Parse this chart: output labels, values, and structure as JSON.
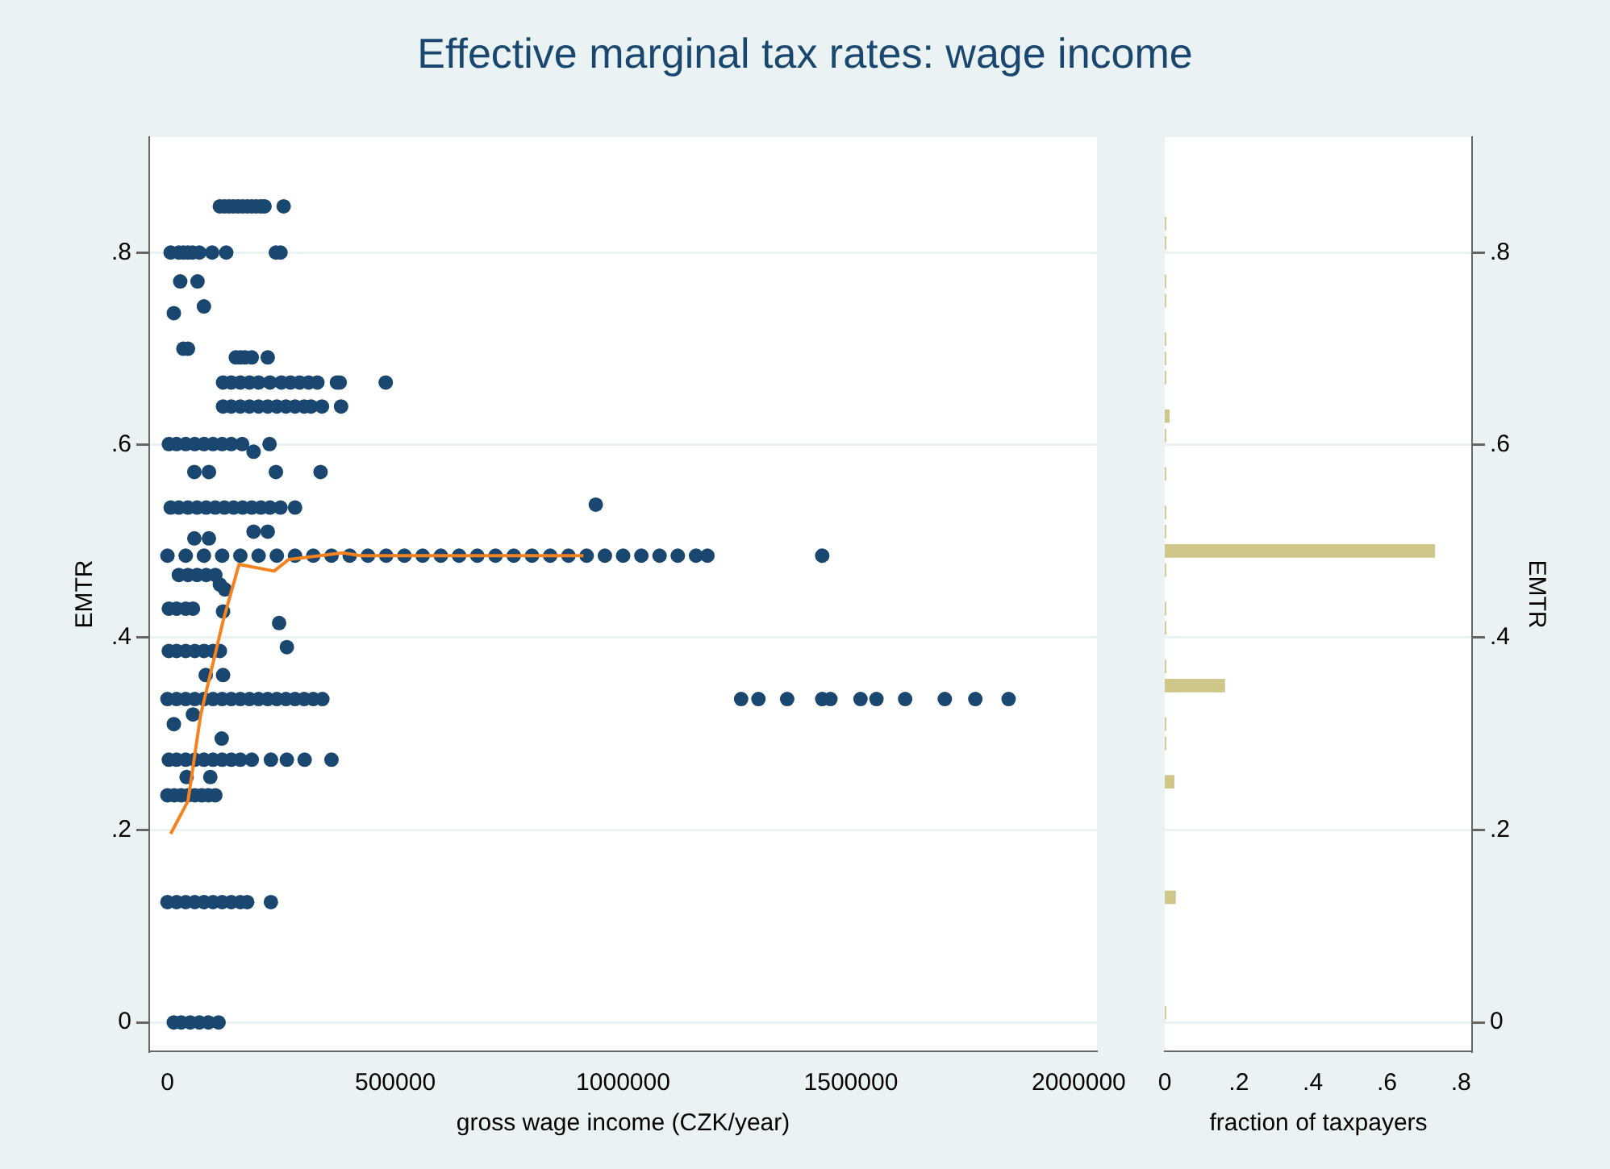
{
  "chart_data": [
    {
      "type": "scatter",
      "title": "Effective marginal tax rates: wage income",
      "xlabel": "gross wage income (CZK/year)",
      "ylabel": "EMTR",
      "xlim": [
        -40000,
        2040000
      ],
      "ylim": [
        -0.03,
        0.92
      ],
      "xticks": [
        0,
        500000,
        1000000,
        1500000,
        2000000
      ],
      "yticks": [
        0,
        {
          "value": 0.2,
          "label": ".2"
        },
        {
          "value": 0.4,
          "label": ".4"
        },
        {
          "value": 0.6,
          "label": ".6"
        },
        {
          "value": 0.8,
          "label": ".8"
        }
      ],
      "grid": "y",
      "marker": "circle",
      "series": [
        {
          "type": "scatter",
          "color": "#1a476f",
          "x": [
            115000,
            125000,
            135000,
            145000,
            155000,
            165000,
            175000,
            185000,
            195000,
            205000,
            213000,
            255000,
            7000,
            25000,
            35000,
            45000,
            55000,
            70000,
            98000,
            129000,
            238000,
            248000,
            28000,
            66000,
            80000,
            14000,
            35000,
            45000,
            150000,
            160000,
            170000,
            185000,
            220000,
            122000,
            140000,
            160000,
            180000,
            200000,
            225000,
            250000,
            270000,
            290000,
            310000,
            329000,
            372000,
            378000,
            479000,
            122000,
            140000,
            160000,
            180000,
            200000,
            220000,
            240000,
            260000,
            280000,
            300000,
            315000,
            339000,
            381000,
            3000,
            20000,
            40000,
            60000,
            80000,
            100000,
            120000,
            140000,
            164000,
            224000,
            189000,
            59000,
            91000,
            238000,
            336000,
            7000,
            25000,
            45000,
            65000,
            85000,
            105000,
            125000,
            145000,
            165000,
            185000,
            205000,
            225000,
            248000,
            280000,
            940000,
            59000,
            91000,
            189000,
            220000,
            0,
            40000,
            80000,
            120000,
            160000,
            200000,
            240000,
            280000,
            320000,
            360000,
            400000,
            440000,
            480000,
            520000,
            560000,
            600000,
            640000,
            680000,
            720000,
            760000,
            800000,
            840000,
            880000,
            920000,
            960000,
            1000000,
            1040000,
            1080000,
            1120000,
            1160000,
            1185000,
            1437000,
            25000,
            45000,
            65000,
            85000,
            105000,
            115000,
            3000,
            20000,
            40000,
            56000,
            126000,
            122000,
            245000,
            262000,
            3000,
            20000,
            40000,
            60000,
            80000,
            100000,
            115000,
            84000,
            122000,
            0,
            20000,
            40000,
            60000,
            80000,
            100000,
            120000,
            140000,
            160000,
            180000,
            200000,
            220000,
            240000,
            260000,
            280000,
            300000,
            320000,
            340000,
            1259000,
            1297000,
            1360000,
            1437000,
            1455000,
            1521000,
            1556000,
            1619000,
            1706000,
            1773000,
            1846000,
            56000,
            14000,
            119000,
            3000,
            20000,
            40000,
            60000,
            80000,
            100000,
            120000,
            140000,
            160000,
            185000,
            227000,
            262000,
            301000,
            360000,
            42000,
            94000,
            0,
            15000,
            30000,
            45000,
            60000,
            75000,
            90000,
            105000,
            0,
            20000,
            40000,
            60000,
            80000,
            100000,
            120000,
            140000,
            160000,
            175000,
            227000,
            14000,
            30000,
            50000,
            70000,
            90000,
            112000
          ],
          "values": [
            0.848,
            0.848,
            0.848,
            0.848,
            0.848,
            0.848,
            0.848,
            0.848,
            0.848,
            0.848,
            0.848,
            0.848,
            0.8,
            0.8,
            0.8,
            0.8,
            0.8,
            0.8,
            0.8,
            0.8,
            0.8,
            0.8,
            0.77,
            0.77,
            0.744,
            0.737,
            0.7,
            0.7,
            0.691,
            0.691,
            0.691,
            0.691,
            0.691,
            0.665,
            0.665,
            0.665,
            0.665,
            0.665,
            0.665,
            0.665,
            0.665,
            0.665,
            0.665,
            0.665,
            0.665,
            0.665,
            0.665,
            0.64,
            0.64,
            0.64,
            0.64,
            0.64,
            0.64,
            0.64,
            0.64,
            0.64,
            0.64,
            0.64,
            0.64,
            0.64,
            0.601,
            0.601,
            0.601,
            0.601,
            0.601,
            0.601,
            0.601,
            0.601,
            0.601,
            0.601,
            0.593,
            0.572,
            0.572,
            0.572,
            0.572,
            0.535,
            0.535,
            0.535,
            0.535,
            0.535,
            0.535,
            0.535,
            0.535,
            0.535,
            0.535,
            0.535,
            0.535,
            0.535,
            0.535,
            0.538,
            0.503,
            0.503,
            0.51,
            0.51,
            0.485,
            0.485,
            0.485,
            0.485,
            0.485,
            0.485,
            0.485,
            0.485,
            0.485,
            0.485,
            0.485,
            0.485,
            0.485,
            0.485,
            0.485,
            0.485,
            0.485,
            0.485,
            0.485,
            0.485,
            0.485,
            0.485,
            0.485,
            0.485,
            0.485,
            0.485,
            0.485,
            0.485,
            0.485,
            0.485,
            0.485,
            0.485,
            0.465,
            0.465,
            0.465,
            0.465,
            0.465,
            0.455,
            0.43,
            0.43,
            0.43,
            0.43,
            0.45,
            0.427,
            0.415,
            0.39,
            0.386,
            0.386,
            0.386,
            0.386,
            0.386,
            0.386,
            0.386,
            0.361,
            0.361,
            0.336,
            0.336,
            0.336,
            0.336,
            0.336,
            0.336,
            0.336,
            0.336,
            0.336,
            0.336,
            0.336,
            0.336,
            0.336,
            0.336,
            0.336,
            0.336,
            0.336,
            0.336,
            0.336,
            0.336,
            0.336,
            0.336,
            0.336,
            0.336,
            0.336,
            0.336,
            0.336,
            0.336,
            0.336,
            0.32,
            0.31,
            0.295,
            0.273,
            0.273,
            0.273,
            0.273,
            0.273,
            0.273,
            0.273,
            0.273,
            0.273,
            0.273,
            0.273,
            0.273,
            0.273,
            0.273,
            0.255,
            0.255,
            0.236,
            0.236,
            0.236,
            0.236,
            0.236,
            0.236,
            0.236,
            0.236,
            0.125,
            0.125,
            0.125,
            0.125,
            0.125,
            0.125,
            0.125,
            0.125,
            0.125,
            0.125,
            0.125,
            0,
            0,
            0,
            0,
            0,
            0
          ]
        },
        {
          "type": "line",
          "color": "#f5821f",
          "marker": "none",
          "x": [
            7000,
            45000,
            73000,
            122000,
            157000,
            234000,
            266000,
            385000,
            423000,
            600000,
            913000
          ],
          "values": [
            0.196,
            0.23,
            0.32,
            0.417,
            0.476,
            0.469,
            0.481,
            0.488,
            0.485,
            0.485,
            0.485
          ]
        }
      ]
    },
    {
      "type": "histogram",
      "orientation": "horizontal",
      "xlabel": "fraction of taxpayers",
      "ylabel": "EMTR",
      "color": "#cfc68a",
      "xlim": [
        0,
        0.83
      ],
      "ylim": [
        -0.03,
        0.92
      ],
      "xticks": [
        0,
        {
          "value": 0.2,
          "label": ".2"
        },
        {
          "value": 0.4,
          "label": ".4"
        },
        {
          "value": 0.6,
          "label": ".6"
        },
        {
          "value": 0.8,
          "label": ".8"
        }
      ],
      "yticks": [
        0,
        {
          "value": 0.2,
          "label": ".2"
        },
        {
          "value": 0.4,
          "label": ".4"
        },
        {
          "value": 0.6,
          "label": ".6"
        },
        {
          "value": 0.8,
          "label": ".8"
        }
      ],
      "grid": "y",
      "bins": [
        0,
        0.02,
        0.04,
        0.06,
        0.08,
        0.1,
        0.12,
        0.14,
        0.16,
        0.18,
        0.2,
        0.22,
        0.24,
        0.26,
        0.28,
        0.3,
        0.32,
        0.34,
        0.36,
        0.38,
        0.4,
        0.42,
        0.44,
        0.46,
        0.48,
        0.5,
        0.52,
        0.54,
        0.56,
        0.58,
        0.6,
        0.62,
        0.64,
        0.66,
        0.68,
        0.7,
        0.72,
        0.74,
        0.76,
        0.78,
        0.8,
        0.82,
        0.84,
        0.86
      ],
      "values": [
        0.004,
        0,
        0,
        0,
        0,
        0,
        0.03,
        0,
        0,
        0,
        0,
        0,
        0.026,
        0,
        0.004,
        0.004,
        0,
        0.163,
        0.004,
        0,
        0.004,
        0.004,
        0,
        0.004,
        0.73,
        0.004,
        0.004,
        0,
        0.004,
        0,
        0.004,
        0.013,
        0,
        0.004,
        0.004,
        0.004,
        0,
        0.004,
        0.004,
        0,
        0.004,
        0.004,
        0
      ]
    }
  ]
}
